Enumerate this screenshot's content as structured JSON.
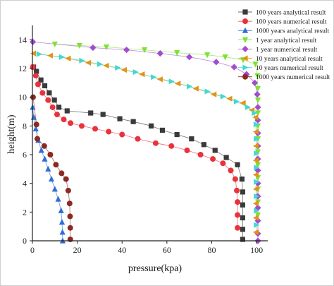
{
  "chart_data": {
    "type": "scatter",
    "xlabel": "pressure(kpa)",
    "ylabel": "height(m)",
    "xlim": [
      0,
      105
    ],
    "ylim": [
      0,
      15
    ],
    "xticks": [
      0,
      20,
      40,
      60,
      80,
      100
    ],
    "yticks": [
      0,
      2,
      4,
      6,
      8,
      10,
      12,
      14
    ],
    "grid": false,
    "legend_position": "top-right",
    "series": [
      {
        "name": "100 years analytical result",
        "marker": "square",
        "color": "#3a3a3a",
        "x": [
          0.5,
          1.8,
          3.8,
          5.5,
          7.5,
          9.8,
          11.8,
          15.5,
          26,
          31.5,
          39,
          45,
          53,
          58,
          64.5,
          71,
          76.5,
          81.5,
          86.5,
          91.5,
          93.5,
          93.8,
          93.8,
          93.8,
          93.8,
          93.8
        ],
        "y": [
          12.1,
          11.8,
          11.2,
          10.8,
          10.3,
          9.8,
          9.3,
          9.05,
          8.9,
          8.8,
          8.5,
          8.3,
          8.0,
          7.7,
          7.4,
          7.1,
          6.7,
          6.3,
          5.8,
          5.3,
          4.3,
          3.4,
          2.5,
          1.6,
          0.8,
          0.1
        ]
      },
      {
        "name": "100 years numerical result",
        "marker": "circle",
        "color": "#e8323c",
        "x": [
          0.2,
          1.5,
          2.5,
          4.5,
          7,
          9,
          11,
          14,
          17,
          22,
          28,
          34,
          40,
          47,
          55,
          62,
          69,
          75,
          80.5,
          85,
          88.5,
          90.5,
          91.2,
          91.5,
          91.5,
          91.5
        ],
        "y": [
          12.1,
          11.5,
          10.9,
          10.3,
          9.8,
          9.3,
          8.8,
          8.45,
          8.2,
          8.0,
          7.8,
          7.6,
          7.4,
          7.1,
          6.8,
          6.6,
          6.3,
          6.0,
          5.7,
          5.4,
          4.9,
          4.3,
          3.5,
          2.7,
          1.8,
          0.9
        ]
      },
      {
        "name": "1000 years analytical result",
        "marker": "triangle-up",
        "color": "#2e6fd6",
        "x": [
          0.1,
          0.6,
          1.5,
          2.6,
          4,
          5.5,
          7,
          8.5,
          10,
          11.5,
          12.8,
          13.2,
          13.4,
          13.5
        ],
        "y": [
          9.3,
          8.6,
          7.8,
          7.0,
          6.3,
          5.7,
          5.0,
          4.3,
          3.6,
          2.9,
          2.1,
          1.3,
          0.6,
          0.0
        ]
      },
      {
        "name": "1 year analytical result",
        "marker": "triangle-down",
        "color": "#7fe233",
        "x": [
          10,
          21,
          33,
          50,
          64.5,
          78,
          86,
          94,
          99.5,
          100.4,
          100.6,
          100.6,
          100.6,
          100.6,
          100.6,
          100.6,
          100.6,
          100.6,
          100.6,
          100.6,
          100.6
        ],
        "y": [
          13.7,
          13.6,
          13.5,
          13.3,
          13.1,
          12.95,
          12.8,
          12.6,
          12.3,
          11.5,
          10.6,
          9.8,
          8.9,
          8.0,
          7.1,
          6.2,
          5.3,
          4.4,
          3.6,
          2.7,
          1.8
        ]
      },
      {
        "name": "1 year numerical result",
        "marker": "diamond",
        "color": "#a24bd1",
        "x": [
          0.2,
          27,
          42,
          57,
          70,
          82,
          90,
          95.5,
          99.2,
          100.3,
          100.6,
          100.6,
          100.6,
          100.6,
          100.6,
          100.6,
          100.6,
          100.6,
          100.6,
          100.6,
          100.6,
          100.6
        ],
        "y": [
          13.85,
          13.45,
          13.3,
          13.05,
          12.8,
          12.45,
          12.1,
          11.6,
          11.0,
          10.2,
          9.3,
          8.4,
          7.5,
          6.6,
          5.7,
          4.9,
          4.0,
          3.1,
          2.3,
          1.4,
          0.5,
          0.0
        ]
      },
      {
        "name": "10 years analytical result",
        "marker": "triangle-left",
        "color": "#e29416",
        "x": [
          0.5,
          8,
          16,
          25,
          33,
          41,
          49,
          57,
          65,
          73,
          81,
          88,
          94,
          98,
          99.6,
          99.8,
          99.8,
          99.8,
          99.8,
          99.8,
          99.8,
          99.8,
          99.8
        ],
        "y": [
          13.05,
          12.9,
          12.7,
          12.4,
          12.2,
          11.9,
          11.6,
          11.25,
          10.95,
          10.6,
          10.2,
          9.9,
          9.6,
          9.1,
          8.6,
          7.6,
          6.6,
          5.6,
          4.6,
          3.6,
          2.6,
          1.6,
          0.6
        ]
      },
      {
        "name": "10 years numerical result",
        "marker": "triangle-right",
        "color": "#3fd9d2",
        "x": [
          3,
          13,
          22,
          30,
          38,
          46,
          54,
          62,
          70,
          78,
          85,
          91,
          96,
          99,
          99.8,
          99.9,
          99.9,
          99.9,
          99.9,
          99.9,
          99.9,
          99.9
        ],
        "y": [
          13.0,
          12.8,
          12.55,
          12.3,
          12.05,
          11.75,
          11.4,
          11.1,
          10.75,
          10.4,
          10.05,
          9.7,
          9.3,
          8.9,
          8.1,
          7.1,
          6.1,
          5.1,
          4.1,
          3.1,
          2.1,
          1.1
        ]
      },
      {
        "name": "1000 years numerical result",
        "marker": "circle",
        "color": "#8a2a22",
        "x": [
          0.3,
          1.8,
          2.2,
          5.3,
          8,
          10.5,
          13,
          15,
          16,
          16.6,
          16.8,
          16.9,
          16.9
        ],
        "y": [
          10.0,
          8.1,
          7.1,
          6.6,
          6.0,
          5.3,
          4.7,
          4.3,
          3.5,
          2.6,
          1.7,
          0.9,
          0.1
        ]
      }
    ]
  }
}
